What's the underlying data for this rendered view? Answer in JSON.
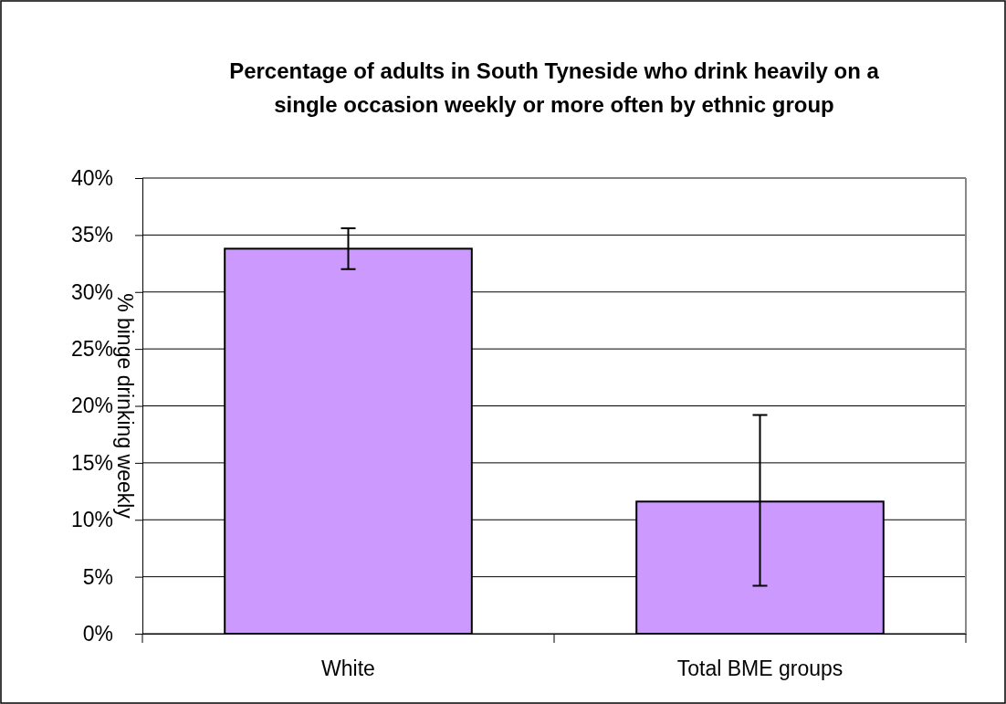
{
  "chart_data": {
    "type": "bar",
    "title": "Percentage of adults in South Tyneside who drink heavily on a single occasion weekly or more often by ethnic group",
    "ylabel": "% binge drinking weekly",
    "categories": [
      "White",
      "Total BME groups"
    ],
    "values": [
      33.8,
      11.6
    ],
    "color": "#cc99ff",
    "errors": [
      [
        32.0,
        35.6
      ],
      [
        4.2,
        19.2
      ]
    ],
    "ylim": [
      0,
      40
    ],
    "yticks": [
      {
        "value": 0,
        "label": "0%"
      },
      {
        "value": 5,
        "label": "5%"
      },
      {
        "value": 10,
        "label": "10%"
      },
      {
        "value": 15,
        "label": "15%"
      },
      {
        "value": 20,
        "label": "20%"
      },
      {
        "value": 25,
        "label": "25%"
      },
      {
        "value": 30,
        "label": "30%"
      },
      {
        "value": 35,
        "label": "35%"
      },
      {
        "value": 40,
        "label": "40%"
      }
    ],
    "grid": "y"
  }
}
